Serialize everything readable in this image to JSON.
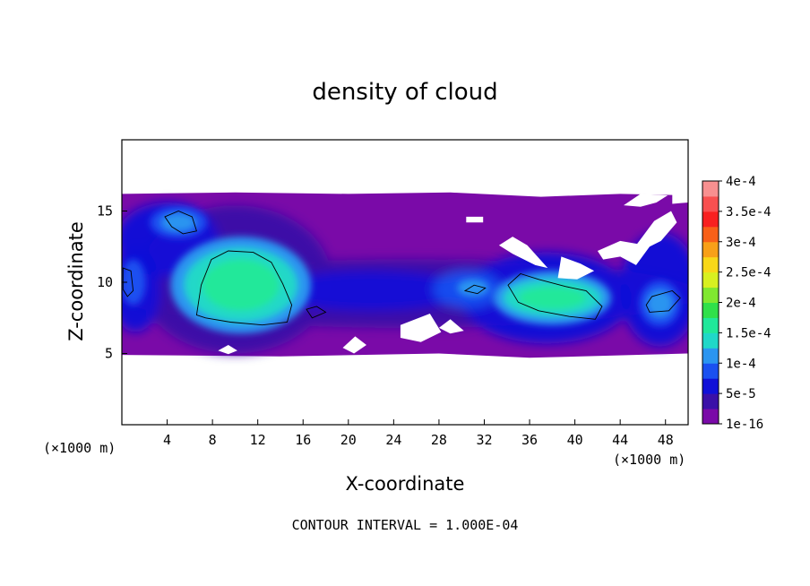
{
  "chart_data": {
    "type": "heatmap",
    "title": "density of cloud",
    "xlabel": "X-coordinate",
    "ylabel": "Z-coordinate",
    "x_units": "(×1000 m)",
    "y_units": "(×1000 m)",
    "xlim": [
      0,
      50
    ],
    "ylim": [
      0,
      20
    ],
    "x_ticks": [
      "4",
      "8",
      "12",
      "16",
      "20",
      "24",
      "28",
      "32",
      "36",
      "40",
      "44",
      "48"
    ],
    "y_ticks": [
      "5",
      "10",
      "15"
    ],
    "grid": false,
    "colorbar": {
      "position": "right",
      "labels": [
        "1e-16",
        "5e-5",
        "1e-4",
        "1.5e-4",
        "2e-4",
        "2.5e-4",
        "3e-4",
        "3.5e-4",
        "4e-4"
      ],
      "colors": [
        "#7a0aa8",
        "#3a10a8",
        "#1010d8",
        "#1a50f0",
        "#2a95f0",
        "#20d8c8",
        "#20e89a",
        "#30e04a",
        "#80e830",
        "#d8f020",
        "#f8d818",
        "#f8a018",
        "#f86018",
        "#f82020",
        "#f85050",
        "#f89090"
      ]
    },
    "cloud_layer_z": [
      5,
      16.3
    ],
    "contour_interval": "CONTOUR INTERVAL = 1.000E-04",
    "features": [
      {
        "x": 10.5,
        "z": 9.8,
        "peak": "1.5e-4"
      },
      {
        "x": 5,
        "z": 14.2,
        "peak": "1e-4"
      },
      {
        "x": 38,
        "z": 8.9,
        "peak": "1.5e-4"
      },
      {
        "x": 47.5,
        "z": 8.5,
        "peak": "1e-4"
      },
      {
        "x": 1,
        "z": 10,
        "peak": "1e-4"
      },
      {
        "x": 31,
        "z": 9.6,
        "peak": "1e-4"
      }
    ]
  }
}
